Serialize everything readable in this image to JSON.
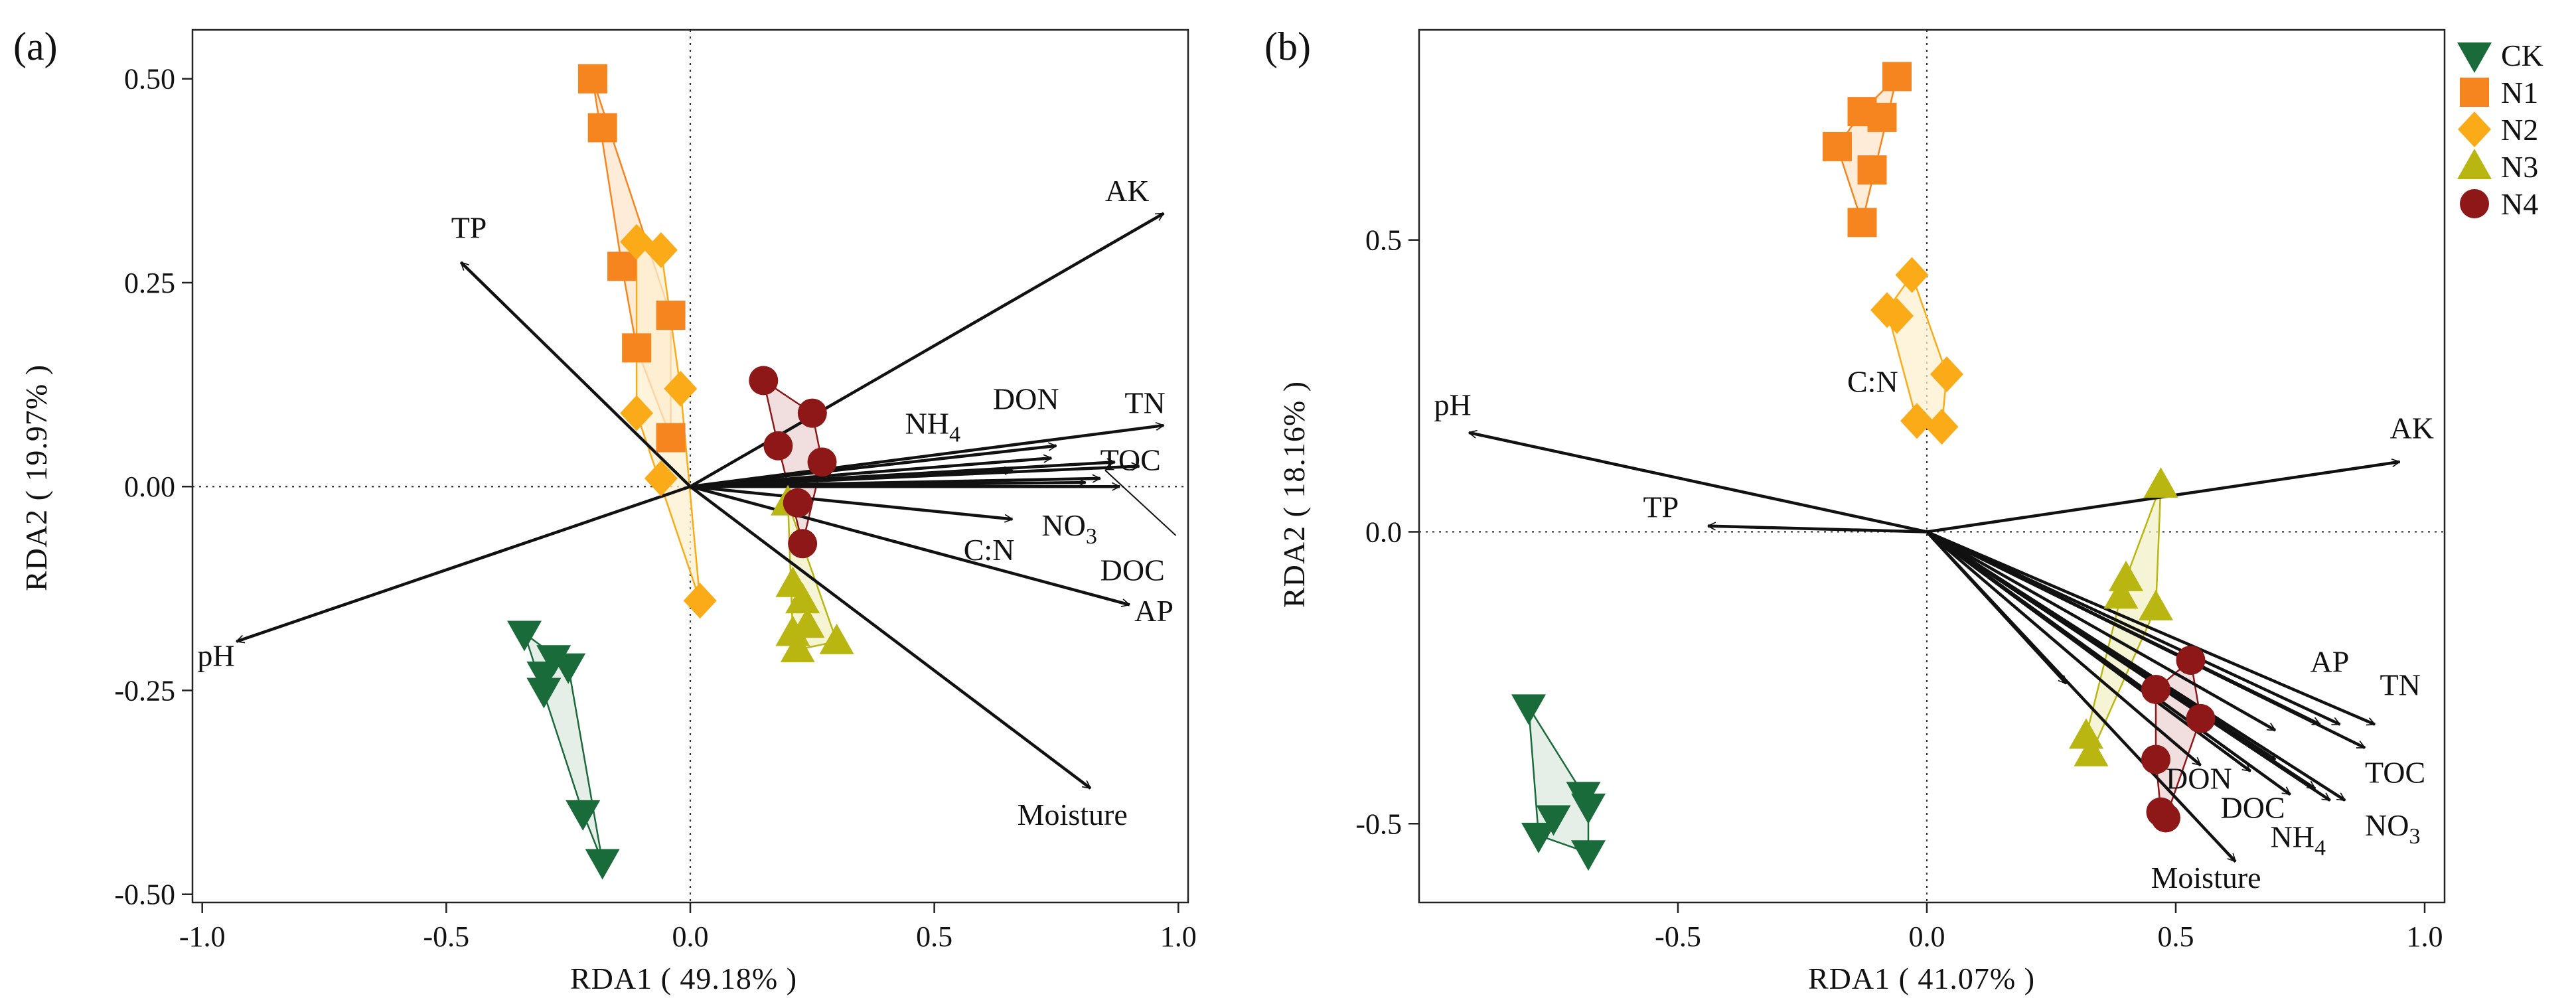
{
  "figure": {
    "legend": [
      {
        "name": "CK",
        "color": "#1a6b3a",
        "marker": "triangle-down"
      },
      {
        "name": "N1",
        "color": "#f7851f",
        "marker": "square"
      },
      {
        "name": "N2",
        "color": "#fbab17",
        "marker": "diamond"
      },
      {
        "name": "N3",
        "color": "#b9b612",
        "marker": "triangle-up"
      },
      {
        "name": "N4",
        "color": "#8e1818",
        "marker": "circle"
      }
    ],
    "hull_fills": {
      "CK": "#dde9df",
      "N1": "#fde6cc",
      "N2": "#fef0d0",
      "N3": "#f1f0c6",
      "N4": "#ecd3d3"
    }
  },
  "chart_data": [
    {
      "type": "scatter",
      "panel_label": "(a)",
      "xlabel": "RDA1 ( 49.18% )",
      "ylabel": "RDA2 ( 19.97% )",
      "xlim": [
        -1.02,
        1.02
      ],
      "ylim": [
        -0.51,
        0.56
      ],
      "xticks": [
        -1.0,
        -0.5,
        0.0,
        0.5,
        1.0
      ],
      "xtick_labels": [
        "-1.0",
        "-0.5",
        "0.0",
        "0.5",
        "1.0"
      ],
      "yticks": [
        -0.5,
        -0.25,
        0.0,
        0.25,
        0.5
      ],
      "ytick_labels": [
        "-0.50",
        "-0.25",
        "0.00",
        "0.25",
        "0.50"
      ],
      "reference_lines": {
        "x": 0,
        "y": 0
      },
      "arrows": [
        {
          "label": "TP",
          "x": -0.47,
          "y": 0.275,
          "lx": -0.49,
          "ly": 0.305,
          "anchor": "start"
        },
        {
          "label": "AK",
          "x": 0.97,
          "y": 0.335,
          "lx": 0.85,
          "ly": 0.35,
          "anchor": "start"
        },
        {
          "label": "pH",
          "x": -0.93,
          "y": -0.19,
          "lx": -1.01,
          "ly": -0.22,
          "anchor": "start"
        },
        {
          "label": "NH",
          "sub": "4",
          "x": 0.74,
          "y": 0.035,
          "lx": 0.44,
          "ly": 0.065,
          "anchor": "start"
        },
        {
          "label": "DON",
          "x": 0.75,
          "y": 0.05,
          "lx": 0.62,
          "ly": 0.095,
          "anchor": "start"
        },
        {
          "label": "TN",
          "x": 0.97,
          "y": 0.075,
          "lx": 0.89,
          "ly": 0.09,
          "anchor": "start"
        },
        {
          "label": "TOC",
          "x": 0.92,
          "y": 0.025,
          "lx": 0.84,
          "ly": 0.02,
          "anchor": "start"
        },
        {
          "label": "NO",
          "sub": "3",
          "x": 0.84,
          "y": 0.01,
          "lx": 0.72,
          "ly": -0.06,
          "anchor": "start"
        },
        {
          "label": "C:N",
          "x": 0.66,
          "y": -0.04,
          "lx": 0.56,
          "ly": -0.09,
          "anchor": "start"
        },
        {
          "label": "DOC",
          "x": 0.88,
          "y": 0.0,
          "lx": 0.84,
          "ly": -0.115,
          "anchor": "start"
        },
        {
          "label": "AP",
          "x": 0.9,
          "y": -0.145,
          "lx": 0.91,
          "ly": -0.165,
          "anchor": "start"
        },
        {
          "label": "Moisture",
          "x": 0.82,
          "y": -0.37,
          "lx": 0.67,
          "ly": -0.415,
          "anchor": "start"
        },
        {
          "label": "",
          "x": 0.87,
          "y": 0.03
        },
        {
          "label": "",
          "x": 0.66,
          "y": 0.02
        },
        {
          "label": "",
          "x": 0.81,
          "y": 0.005
        }
      ],
      "leader_lines": [
        {
          "x1": 0.85,
          "y1": 0.02,
          "x2": 0.995,
          "y2": -0.06
        }
      ],
      "groups": [
        {
          "name": "CK",
          "points": [
            [
              -0.34,
              -0.18
            ],
            [
              -0.3,
              -0.23
            ],
            [
              -0.28,
              -0.21
            ],
            [
              -0.25,
              -0.22
            ],
            [
              -0.3,
              -0.25
            ],
            [
              -0.22,
              -0.4
            ],
            [
              -0.18,
              -0.46
            ]
          ]
        },
        {
          "name": "N1",
          "points": [
            [
              -0.2,
              0.5
            ],
            [
              -0.18,
              0.44
            ],
            [
              -0.14,
              0.27
            ],
            [
              -0.11,
              0.17
            ],
            [
              -0.04,
              0.21
            ],
            [
              -0.04,
              0.06
            ]
          ]
        },
        {
          "name": "N2",
          "points": [
            [
              -0.11,
              0.3
            ],
            [
              -0.06,
              0.29
            ],
            [
              -0.02,
              0.12
            ],
            [
              -0.11,
              0.09
            ],
            [
              -0.06,
              0.01
            ],
            [
              0.02,
              -0.14
            ]
          ]
        },
        {
          "name": "N3",
          "points": [
            [
              0.2,
              -0.02
            ],
            [
              0.21,
              -0.12
            ],
            [
              0.23,
              -0.14
            ],
            [
              0.21,
              -0.18
            ],
            [
              0.24,
              -0.17
            ],
            [
              0.3,
              -0.19
            ],
            [
              0.22,
              -0.2
            ]
          ]
        },
        {
          "name": "N4",
          "points": [
            [
              0.15,
              0.13
            ],
            [
              0.25,
              0.09
            ],
            [
              0.18,
              0.05
            ],
            [
              0.27,
              0.03
            ],
            [
              0.22,
              -0.02
            ],
            [
              0.23,
              -0.07
            ]
          ]
        }
      ]
    },
    {
      "type": "scatter",
      "panel_label": "(b)",
      "xlabel": "RDA1 ( 41.07% )",
      "ylabel": "RDA2 ( 18.16% )",
      "xlim": [
        -1.02,
        1.04
      ],
      "ylim": [
        -0.635,
        0.86
      ],
      "xticks": [
        -0.5,
        0.0,
        0.5,
        1.0
      ],
      "xtick_labels": [
        "-0.5",
        "0.0",
        "0.5",
        "1.0"
      ],
      "yticks": [
        -0.5,
        0.0,
        0.5
      ],
      "ytick_labels": [
        "-0.5",
        "0.0",
        "0.5"
      ],
      "reference_lines": {
        "x": 0,
        "y": 0
      },
      "arrows": [
        {
          "label": "pH",
          "x": -0.92,
          "y": 0.17,
          "lx": -0.99,
          "ly": 0.2,
          "anchor": "start"
        },
        {
          "label": "TP",
          "x": -0.44,
          "y": 0.01,
          "lx": -0.57,
          "ly": 0.025,
          "anchor": "start"
        },
        {
          "label": "AK",
          "x": 0.95,
          "y": 0.12,
          "lx": 0.93,
          "ly": 0.16,
          "anchor": "start"
        },
        {
          "label": "AP",
          "x": 0.83,
          "y": -0.33,
          "lx": 0.77,
          "ly": -0.24,
          "anchor": "start"
        },
        {
          "label": "TN",
          "x": 0.9,
          "y": -0.33,
          "lx": 0.91,
          "ly": -0.28,
          "anchor": "start"
        },
        {
          "label": "TOC",
          "x": 0.88,
          "y": -0.37,
          "lx": 0.88,
          "ly": -0.43,
          "anchor": "start"
        },
        {
          "label": "NO",
          "sub": "3",
          "x": 0.84,
          "y": -0.46,
          "lx": 0.88,
          "ly": -0.52,
          "anchor": "start"
        },
        {
          "label": "NH",
          "sub": "4",
          "x": 0.81,
          "y": -0.46,
          "lx": 0.69,
          "ly": -0.54,
          "anchor": "start"
        },
        {
          "label": "DOC",
          "x": 0.78,
          "y": -0.44,
          "lx": 0.59,
          "ly": -0.49,
          "anchor": "start"
        },
        {
          "label": "DON",
          "x": 0.7,
          "y": -0.39,
          "lx": 0.48,
          "ly": -0.44,
          "anchor": "start"
        },
        {
          "label": "Moisture",
          "x": 0.62,
          "y": -0.565,
          "lx": 0.45,
          "ly": -0.61,
          "anchor": "start"
        },
        {
          "label": "C:N",
          "x": -0.02,
          "y": 0.26,
          "lx": -0.16,
          "ly": 0.24,
          "anchor": "start",
          "no_arrow": true
        },
        {
          "label": "",
          "x": 0.28,
          "y": -0.26
        },
        {
          "label": "",
          "x": 0.55,
          "y": -0.4
        },
        {
          "label": "",
          "x": 0.7,
          "y": -0.34
        },
        {
          "label": "",
          "x": 0.73,
          "y": -0.45
        },
        {
          "label": "",
          "x": 0.79,
          "y": -0.33
        },
        {
          "label": "",
          "x": 0.65,
          "y": -0.41
        }
      ],
      "leader_lines": [],
      "groups": [
        {
          "name": "CK",
          "points": [
            [
              -0.8,
              -0.3
            ],
            [
              -0.78,
              -0.52
            ],
            [
              -0.75,
              -0.49
            ],
            [
              -0.69,
              -0.45
            ],
            [
              -0.68,
              -0.47
            ],
            [
              -0.68,
              -0.55
            ]
          ]
        },
        {
          "name": "N1",
          "points": [
            [
              -0.06,
              0.78
            ],
            [
              -0.13,
              0.72
            ],
            [
              -0.09,
              0.71
            ],
            [
              -0.18,
              0.66
            ],
            [
              -0.11,
              0.62
            ],
            [
              -0.13,
              0.53
            ]
          ]
        },
        {
          "name": "N2",
          "points": [
            [
              -0.03,
              0.44
            ],
            [
              -0.08,
              0.38
            ],
            [
              -0.06,
              0.37
            ],
            [
              0.04,
              0.27
            ],
            [
              -0.02,
              0.19
            ],
            [
              0.03,
              0.18
            ]
          ]
        },
        {
          "name": "N3",
          "points": [
            [
              0.47,
              0.08
            ],
            [
              0.4,
              -0.08
            ],
            [
              0.39,
              -0.11
            ],
            [
              0.46,
              -0.13
            ],
            [
              0.32,
              -0.35
            ],
            [
              0.33,
              -0.38
            ]
          ]
        },
        {
          "name": "N4",
          "points": [
            [
              0.53,
              -0.22
            ],
            [
              0.55,
              -0.32
            ],
            [
              0.46,
              -0.27
            ],
            [
              0.46,
              -0.39
            ],
            [
              0.47,
              -0.48
            ],
            [
              0.48,
              -0.49
            ]
          ]
        }
      ]
    }
  ]
}
